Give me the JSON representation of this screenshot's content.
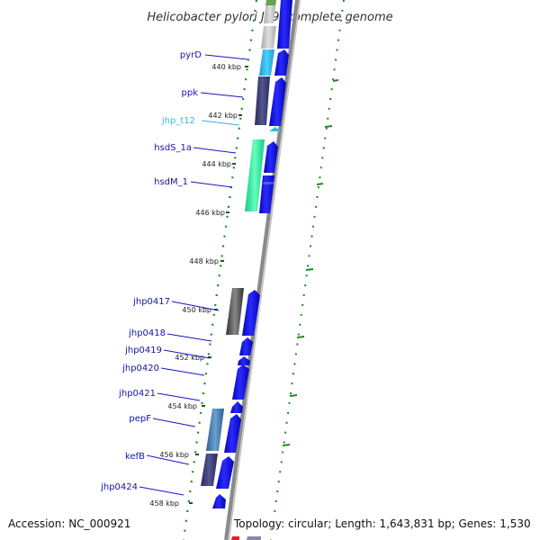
{
  "title": "Helicobacter pylori J99, complete genome",
  "accession": "Accession: NC_000921",
  "topology": "Topology: circular; Length: 1,643,831 bp; Genes: 1,530",
  "colors": {
    "backbone": "#8a8a8a",
    "forward_strand_genes": "#0b0bdb",
    "label_text": "#1515a8",
    "trna_label": "#33bbdd",
    "tick_marks": "#1f8a1f",
    "gc_skew_marks": "#1f8a1f"
  },
  "scale": {
    "unit": "kbp",
    "ticks": [
      {
        "label": "440 kbp"
      },
      {
        "label": "442 kbp"
      },
      {
        "label": "444 kbp"
      },
      {
        "label": "446 kbp"
      },
      {
        "label": "448 kbp"
      },
      {
        "label": "450 kbp"
      },
      {
        "label": "452 kbp"
      },
      {
        "label": "454 kbp"
      },
      {
        "label": "456 kbp"
      },
      {
        "label": "458 kbp"
      }
    ]
  },
  "genes": [
    {
      "name": "pyrD",
      "type": "cds",
      "color": "#1ea8e8"
    },
    {
      "name": "ppk",
      "type": "cds",
      "color": "#3a3a7a"
    },
    {
      "name": "jhp_t12",
      "type": "trna",
      "color": "#33bbdd"
    },
    {
      "name": "hsdS_1a",
      "type": "cds",
      "color": "#22dd99"
    },
    {
      "name": "hsdM_1",
      "type": "cds",
      "color": "#22ee88"
    },
    {
      "name": "jhp0417",
      "type": "cds",
      "color": "#4a4a4a"
    },
    {
      "name": "jhp0418",
      "type": "cds",
      "color": "#0b0bdb"
    },
    {
      "name": "jhp0419",
      "type": "cds",
      "color": "#0b0bdb"
    },
    {
      "name": "jhp0420",
      "type": "cds",
      "color": "#0b0bdb"
    },
    {
      "name": "jhp0421",
      "type": "cds",
      "color": "#0b0bdb"
    },
    {
      "name": "pepF",
      "type": "cds",
      "color": "#3a6fa8"
    },
    {
      "name": "kefB",
      "type": "cds",
      "color": "#3a3a7a"
    },
    {
      "name": "jhp0424",
      "type": "cds",
      "color": "#0b0bdb"
    }
  ]
}
